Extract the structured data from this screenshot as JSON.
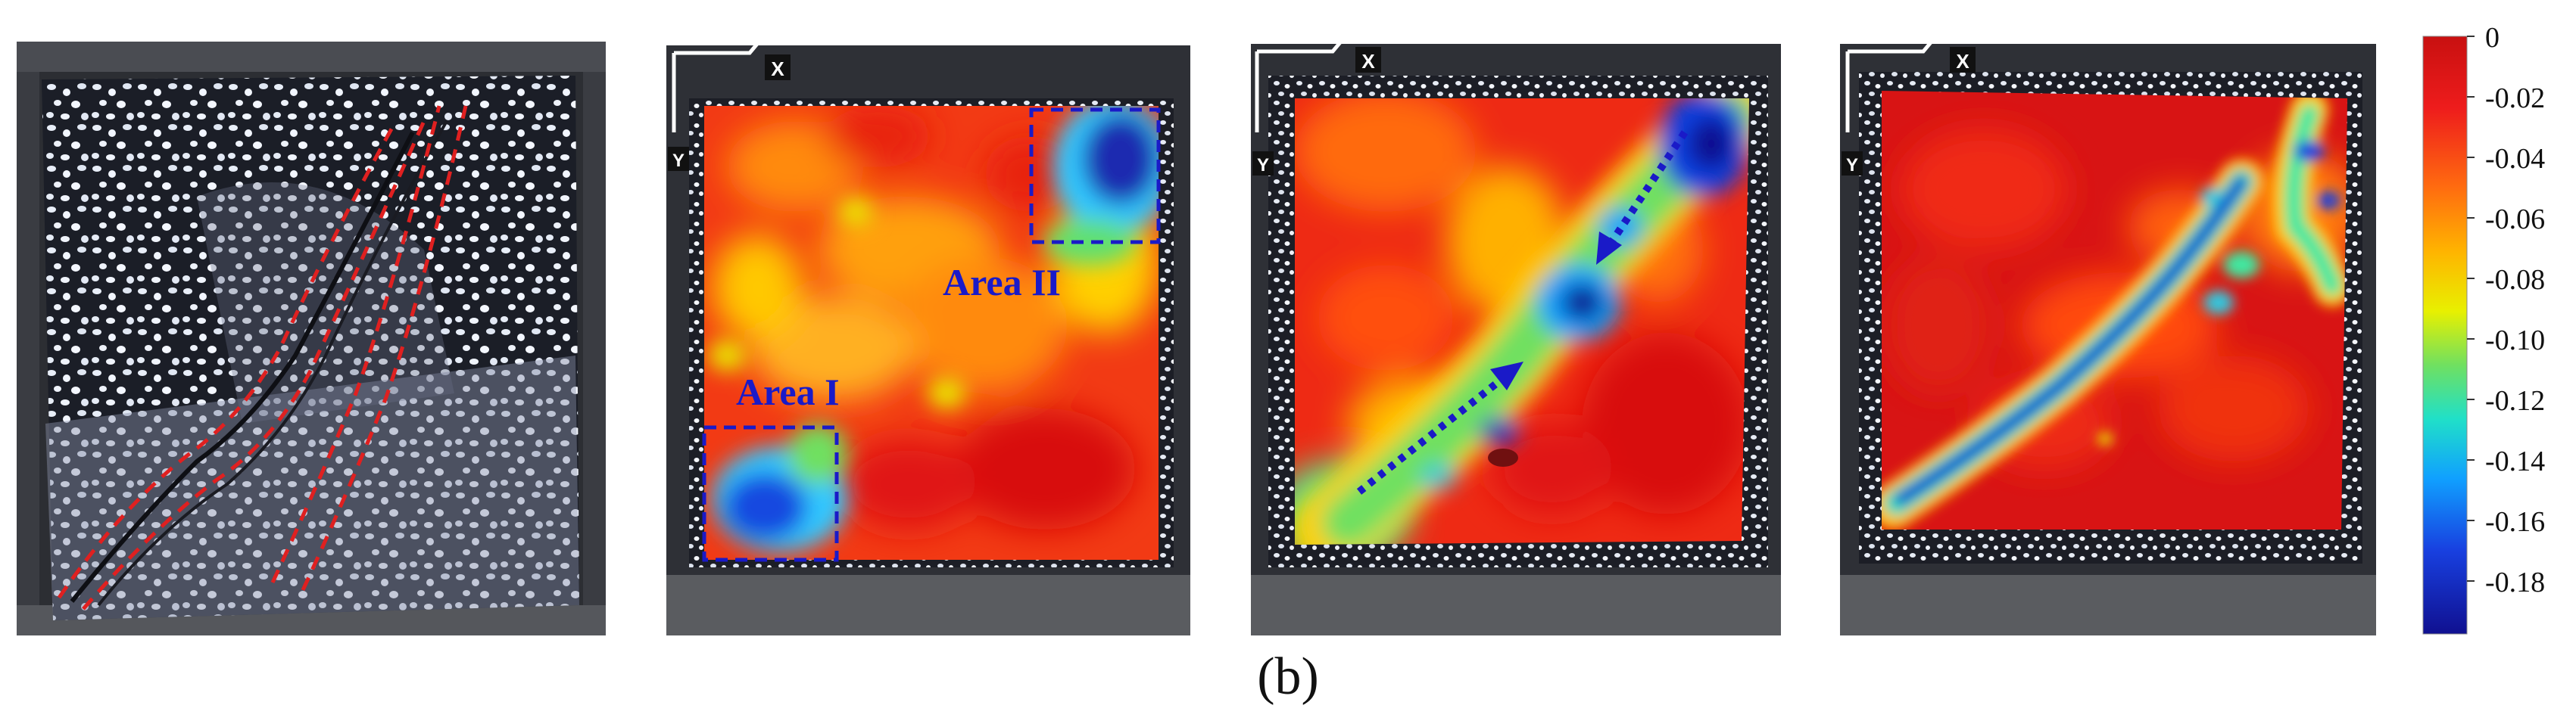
{
  "figure": {
    "caption": "(b)",
    "panels": [
      {
        "id": "photo",
        "type": "specimen-photo-with-crack-markers"
      },
      {
        "id": "strain-map-1",
        "axis_x_label": "X",
        "axis_y_label": "Y",
        "annotations": [
          "Area I",
          "Area II"
        ]
      },
      {
        "id": "strain-map-2",
        "axis_x_label": "X",
        "axis_y_label": "Y"
      },
      {
        "id": "strain-map-3",
        "axis_x_label": "X",
        "axis_y_label": "Y"
      }
    ],
    "colorbar": {
      "tick_labels": [
        "0",
        "-0.02",
        "-0.04",
        "-0.06",
        "-0.08",
        "-0.10",
        "-0.12",
        "-0.14",
        "-0.16",
        "-0.18"
      ],
      "colors_top_to_bottom": [
        "#c81010",
        "#ee1c1c",
        "#ff6a10",
        "#ffb400",
        "#e8f000",
        "#70e060",
        "#20e0c8",
        "#10a0ff",
        "#1840e0",
        "#101090"
      ]
    },
    "colors": {
      "annotation_blue": "#1a1ac8",
      "crack_dash_red": "#e02020",
      "frame_dark": "#2a2b2e"
    }
  }
}
